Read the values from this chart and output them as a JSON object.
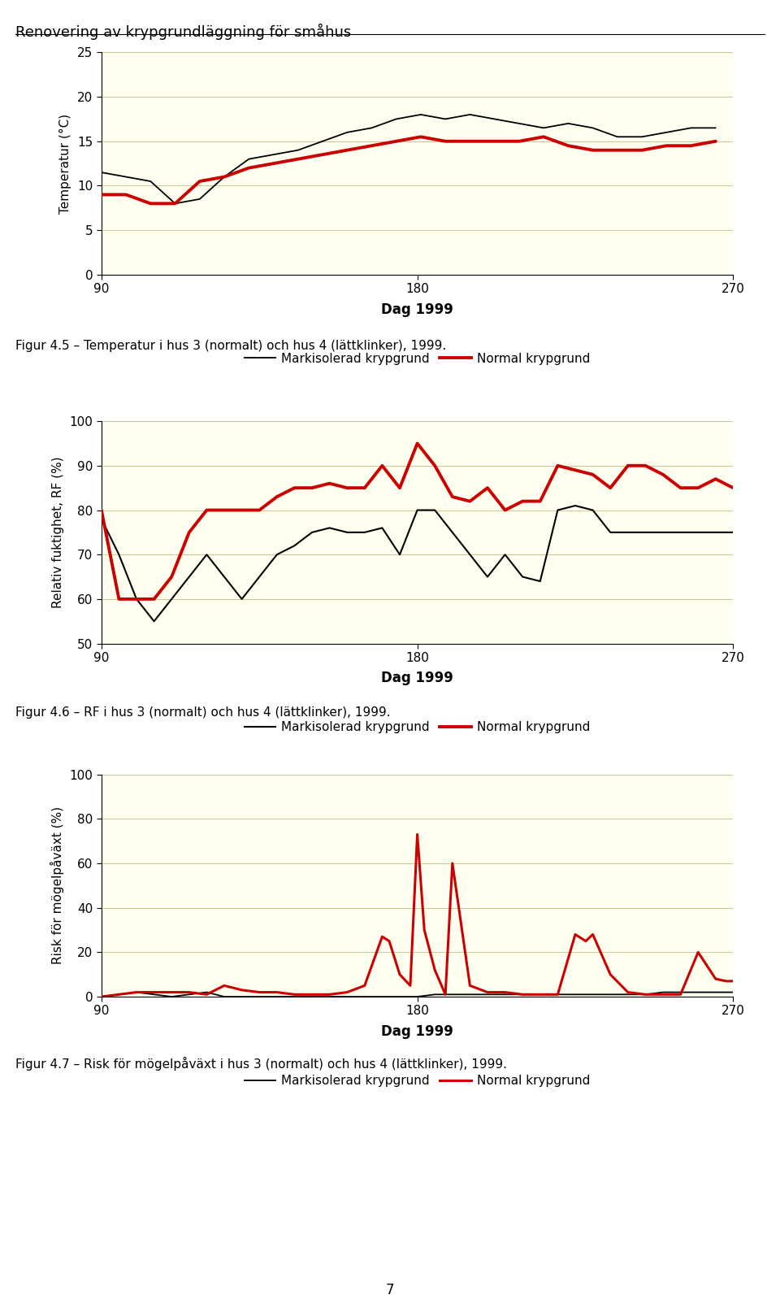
{
  "page_title": "Renovering av krypgrundläggning för småhus",
  "page_number": "7",
  "bg_color": "#ffffff",
  "plot_bg_color": "#fffff0",
  "line_color_black": "#000000",
  "line_color_red": "#cc0000",
  "chart1": {
    "ylabel": "Temperatur (°C)",
    "xlabel": "Dag 1999",
    "ylim": [
      0,
      25
    ],
    "yticks": [
      0,
      5,
      10,
      15,
      20,
      25
    ],
    "xlim": [
      90,
      270
    ],
    "xticks": [
      90,
      180,
      270
    ],
    "caption": "Figur 4.5 – Temperatur i hus 3 (normalt) och hus 4 (lättklinker), 1999.",
    "black_x": [
      90,
      97,
      104,
      111,
      118,
      125,
      132,
      139,
      146,
      153,
      160,
      167,
      174,
      181,
      188,
      195,
      202,
      209,
      216,
      223,
      230,
      237,
      244,
      251,
      258,
      265
    ],
    "black_y": [
      11.5,
      11.0,
      10.5,
      8.0,
      8.5,
      11.0,
      13.0,
      13.5,
      14.0,
      15.0,
      16.0,
      16.5,
      17.5,
      18.0,
      17.5,
      18.0,
      17.5,
      17.0,
      16.5,
      17.0,
      16.5,
      15.5,
      15.5,
      16.0,
      16.5,
      16.5
    ],
    "red_x": [
      90,
      97,
      104,
      111,
      118,
      125,
      132,
      139,
      146,
      153,
      160,
      167,
      174,
      181,
      188,
      195,
      202,
      209,
      216,
      223,
      230,
      237,
      244,
      251,
      258,
      265
    ],
    "red_y": [
      9.0,
      9.0,
      8.0,
      8.0,
      10.5,
      11.0,
      12.0,
      12.5,
      13.0,
      13.5,
      14.0,
      14.5,
      15.0,
      15.5,
      15.0,
      15.0,
      15.0,
      15.0,
      15.5,
      14.5,
      14.0,
      14.0,
      14.0,
      14.5,
      14.5,
      15.0
    ]
  },
  "chart2": {
    "ylabel": "Relativ fuktighet, RF (%)",
    "xlabel": "Dag 1999",
    "ylim": [
      50,
      100
    ],
    "yticks": [
      50,
      60,
      70,
      80,
      90,
      100
    ],
    "xlim": [
      90,
      270
    ],
    "xticks": [
      90,
      180,
      270
    ],
    "caption": "Figur 4.6 – RF i hus 3 (normalt) och hus 4 (lättklinker), 1999.",
    "black_x": [
      90,
      95,
      100,
      105,
      110,
      115,
      120,
      125,
      130,
      135,
      140,
      145,
      150,
      155,
      160,
      165,
      170,
      175,
      180,
      185,
      190,
      195,
      200,
      205,
      210,
      215,
      220,
      225,
      230,
      235,
      240,
      245,
      250,
      255,
      260,
      265,
      270
    ],
    "black_y": [
      78,
      70,
      60,
      55,
      60,
      65,
      70,
      65,
      60,
      65,
      70,
      72,
      75,
      76,
      75,
      75,
      76,
      70,
      80,
      80,
      75,
      70,
      65,
      70,
      65,
      64,
      80,
      81,
      80,
      75,
      75,
      75,
      75,
      75,
      75,
      75,
      75
    ],
    "red_x": [
      90,
      95,
      100,
      105,
      110,
      115,
      120,
      125,
      130,
      135,
      140,
      145,
      150,
      155,
      160,
      165,
      170,
      175,
      180,
      185,
      190,
      195,
      200,
      205,
      210,
      215,
      220,
      225,
      230,
      235,
      240,
      245,
      250,
      255,
      260,
      265,
      270
    ],
    "red_y": [
      80,
      60,
      60,
      60,
      65,
      75,
      80,
      80,
      80,
      80,
      83,
      85,
      85,
      86,
      85,
      85,
      90,
      85,
      95,
      90,
      83,
      82,
      85,
      80,
      82,
      82,
      90,
      89,
      88,
      85,
      90,
      90,
      88,
      85,
      85,
      87,
      85
    ]
  },
  "chart3": {
    "ylabel": "Risk för mögelpåväxt (%)",
    "xlabel": "Dag 1999",
    "ylim": [
      0,
      100
    ],
    "yticks": [
      0,
      20,
      40,
      60,
      80,
      100
    ],
    "xlim": [
      90,
      270
    ],
    "xticks": [
      90,
      180,
      270
    ],
    "caption": "Figur 4.7 – Risk för mögelpåväxt i hus 3 (normalt) och hus 4 (lättklinker), 1999.",
    "black_x": [
      90,
      100,
      110,
      120,
      125,
      130,
      135,
      140,
      145,
      150,
      155,
      160,
      165,
      170,
      175,
      180,
      185,
      190,
      195,
      200,
      205,
      210,
      215,
      220,
      225,
      230,
      235,
      240,
      245,
      250,
      255,
      260,
      265,
      270
    ],
    "black_y": [
      0,
      2,
      0,
      2,
      0,
      0,
      0,
      0,
      0,
      0,
      0,
      0,
      0,
      0,
      0,
      0,
      1,
      1,
      1,
      1,
      1,
      1,
      1,
      1,
      1,
      1,
      1,
      1,
      1,
      2,
      2,
      2,
      2,
      2
    ],
    "red_x": [
      90,
      100,
      110,
      115,
      120,
      125,
      130,
      135,
      140,
      145,
      150,
      155,
      160,
      165,
      170,
      172,
      175,
      178,
      180,
      182,
      185,
      188,
      190,
      195,
      200,
      205,
      210,
      215,
      220,
      225,
      228,
      230,
      235,
      240,
      245,
      250,
      255,
      260,
      265,
      268,
      270
    ],
    "red_y": [
      0,
      2,
      2,
      2,
      1,
      5,
      3,
      2,
      2,
      1,
      1,
      1,
      2,
      5,
      27,
      25,
      10,
      5,
      73,
      30,
      12,
      1,
      60,
      5,
      2,
      2,
      1,
      1,
      1,
      28,
      25,
      28,
      10,
      2,
      1,
      1,
      1,
      20,
      8,
      7,
      7
    ]
  },
  "legend_black_label": "Markisolerad krypgrund",
  "legend_red_label": "Normal krypgrund"
}
